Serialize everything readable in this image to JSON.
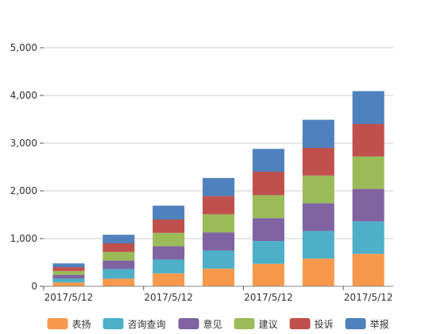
{
  "chart_data": {
    "type": "bar",
    "stacked": true,
    "categories": [
      "2017/5/12",
      "",
      "2017/5/12",
      "",
      "2017/5/12",
      "",
      "2017/5/12"
    ],
    "series": [
      {
        "name": "表扬",
        "color": "#f7994c",
        "values": [
          80,
          160,
          270,
          370,
          470,
          580,
          680
        ]
      },
      {
        "name": "咨询查询",
        "color": "#4dafc8",
        "values": [
          80,
          200,
          290,
          380,
          480,
          580,
          680
        ]
      },
      {
        "name": "意见",
        "color": "#8064a2",
        "values": [
          80,
          180,
          280,
          380,
          480,
          580,
          680
        ]
      },
      {
        "name": "建议",
        "color": "#9bbb59",
        "values": [
          80,
          180,
          280,
          380,
          480,
          580,
          680
        ]
      },
      {
        "name": "投诉",
        "color": "#c0504d",
        "values": [
          80,
          180,
          280,
          380,
          490,
          580,
          680
        ]
      },
      {
        "name": "举报",
        "color": "#4f81bd",
        "values": [
          80,
          180,
          290,
          380,
          480,
          590,
          690
        ]
      }
    ],
    "y_ticks": [
      "0",
      "1,000",
      "2,000",
      "3,000",
      "4,000",
      "5,000"
    ],
    "ylim": [
      0,
      5000
    ],
    "grid": true,
    "legend_position": "bottom"
  }
}
